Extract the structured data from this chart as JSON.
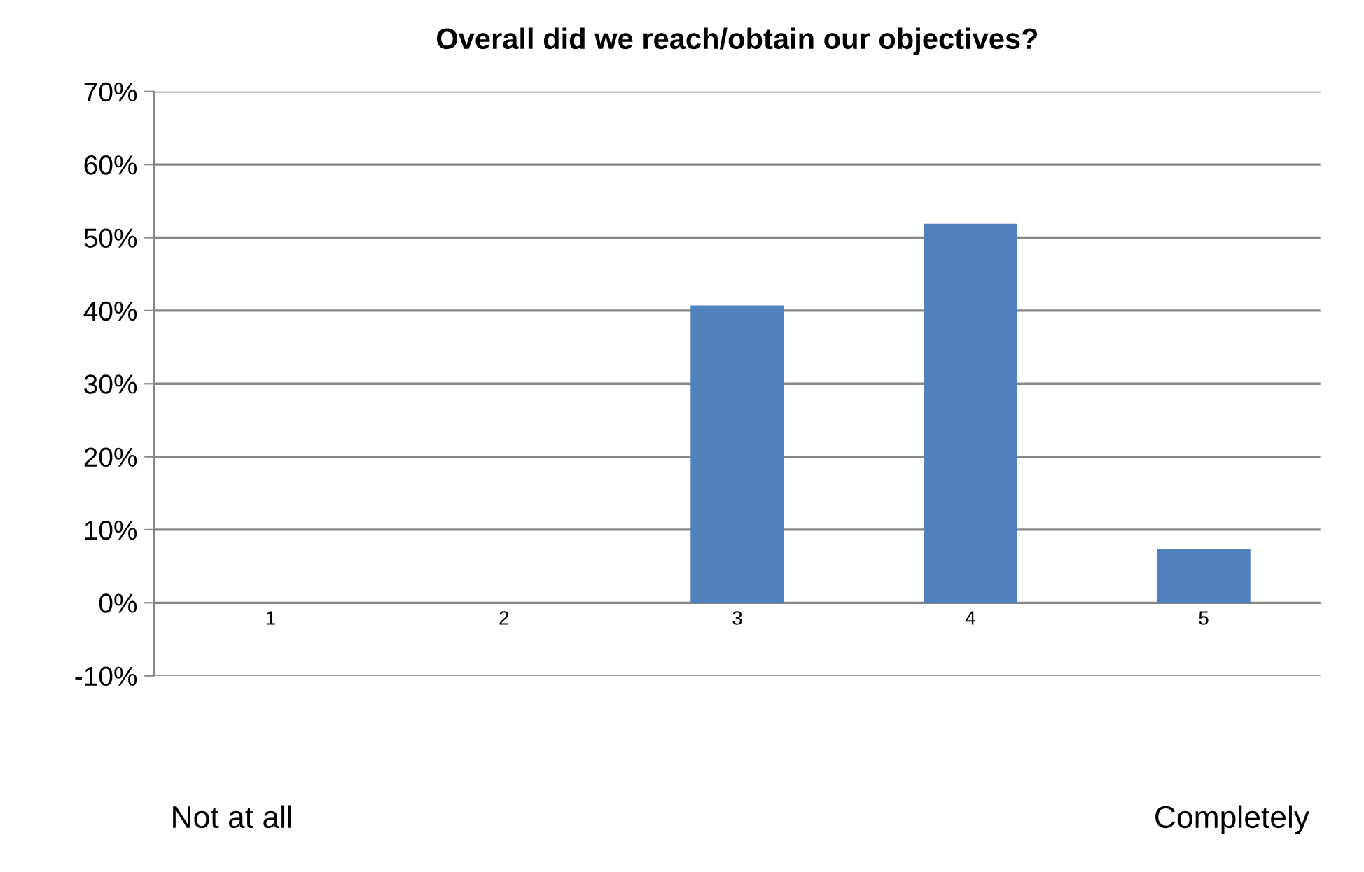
{
  "chart_data": {
    "type": "bar",
    "title": "Overall did we reach/obtain our objectives?",
    "categories": [
      "1",
      "2",
      "3",
      "4",
      "5"
    ],
    "values": [
      0,
      0,
      40.7,
      51.9,
      7.4
    ],
    "color": "#4f81bd",
    "ylim": [
      -10,
      70
    ],
    "yticks": [
      {
        "value": -10,
        "label": "-10%"
      },
      {
        "value": 0,
        "label": "0%"
      },
      {
        "value": 10,
        "label": "10%"
      },
      {
        "value": 20,
        "label": "20%"
      },
      {
        "value": 30,
        "label": "30%"
      },
      {
        "value": 40,
        "label": "40%"
      },
      {
        "value": 50,
        "label": "50%"
      },
      {
        "value": 60,
        "label": "60%"
      },
      {
        "value": 70,
        "label": "70%"
      }
    ],
    "grid": "y",
    "annotations": [
      "Not at all",
      "Completely"
    ]
  }
}
